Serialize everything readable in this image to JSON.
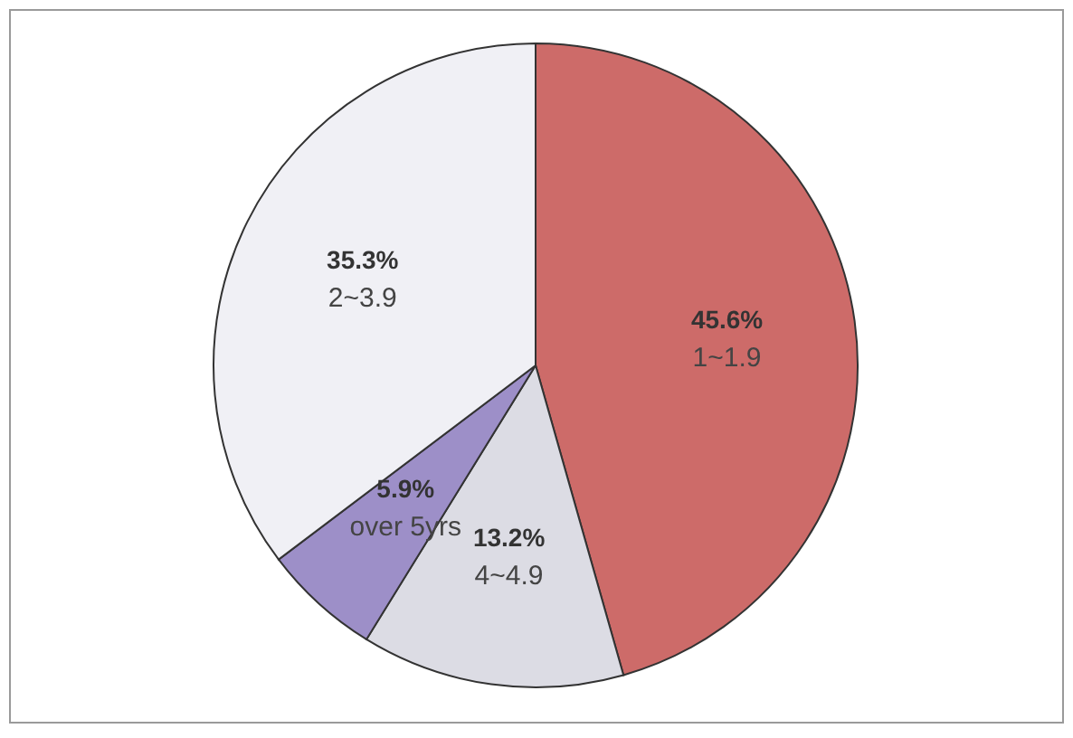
{
  "chart_data": {
    "type": "pie",
    "categories": [
      "1~1.9",
      "4~4.9",
      "over 5yrs",
      "2~3.9"
    ],
    "values": [
      45.6,
      13.2,
      5.9,
      35.3
    ],
    "colors": [
      "#cd6b69",
      "#dcdce4",
      "#9d8fc8",
      "#f0f0f5"
    ],
    "value_labels": [
      "45.6%",
      "13.2%",
      "5.9%",
      "35.3%"
    ]
  }
}
